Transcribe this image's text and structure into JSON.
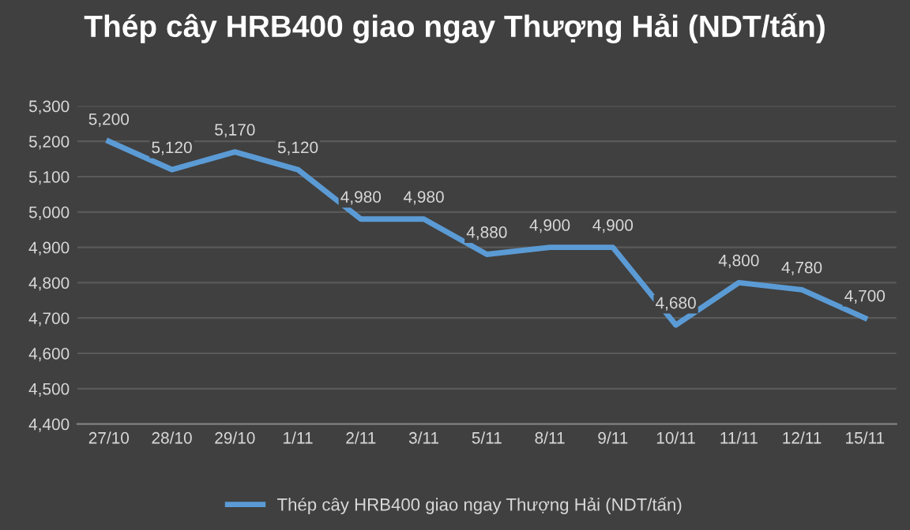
{
  "chart_data": {
    "type": "line",
    "title": "Thép cây HRB400 giao ngay Thượng Hải (NDT/tấn)",
    "categories": [
      "27/10",
      "28/10",
      "29/10",
      "1/11",
      "2/11",
      "3/11",
      "5/11",
      "8/11",
      "9/11",
      "10/11",
      "11/11",
      "12/11",
      "15/11"
    ],
    "series": [
      {
        "name": "Thép cây HRB400 giao ngay Thượng Hải (NDT/tấn)",
        "color": "#5b9bd5",
        "values": [
          5200,
          5120,
          5170,
          5120,
          4980,
          4980,
          4880,
          4900,
          4900,
          4680,
          4800,
          4780,
          4700
        ],
        "value_labels": [
          "5,200",
          "5,120",
          "5,170",
          "5,120",
          "4,980",
          "4,980",
          "4,880",
          "4,900",
          "4,900",
          "4,680",
          "4,800",
          "4,780",
          "4,700"
        ]
      }
    ],
    "ylim": [
      4400,
      5300
    ],
    "yticks": [
      {
        "value": 4400,
        "label": "4,400"
      },
      {
        "value": 4500,
        "label": "4,500"
      },
      {
        "value": 4600,
        "label": "4,600"
      },
      {
        "value": 4700,
        "label": "4,700"
      },
      {
        "value": 4800,
        "label": "4,800"
      },
      {
        "value": 4900,
        "label": "4,900"
      },
      {
        "value": 5000,
        "label": "5,000"
      },
      {
        "value": 5100,
        "label": "5,100"
      },
      {
        "value": 5200,
        "label": "5,200"
      },
      {
        "value": 5300,
        "label": "5,300"
      }
    ],
    "grid": "y",
    "legend": "bottom",
    "marker": "none",
    "line_style": "solid"
  }
}
